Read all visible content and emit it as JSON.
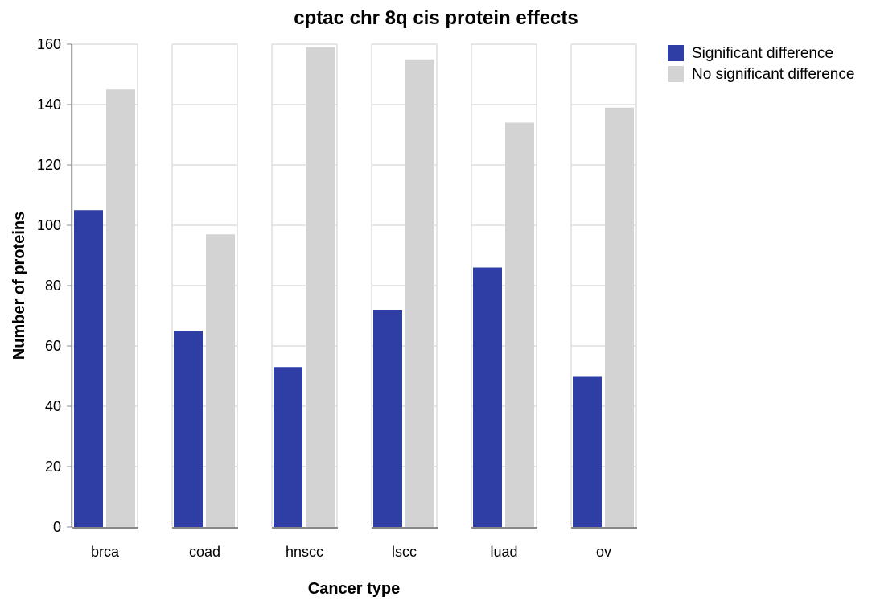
{
  "chart_data": {
    "type": "bar",
    "title": "cptac chr 8q cis protein effects",
    "xlabel": "Cancer type",
    "ylabel": "Number of proteins",
    "ylim": [
      0,
      160
    ],
    "yticks": [
      0,
      20,
      40,
      60,
      80,
      100,
      120,
      140,
      160
    ],
    "grid": true,
    "legend_position": "top-right",
    "categories": [
      "brca",
      "coad",
      "hnscc",
      "lscc",
      "luad",
      "ov"
    ],
    "series": [
      {
        "name": "Significant difference",
        "color": "#2e3ea5",
        "values": [
          105,
          65,
          53,
          72,
          86,
          50
        ]
      },
      {
        "name": "No significant difference",
        "color": "#d3d3d3",
        "values": [
          145,
          97,
          159,
          155,
          134,
          139
        ]
      }
    ]
  }
}
